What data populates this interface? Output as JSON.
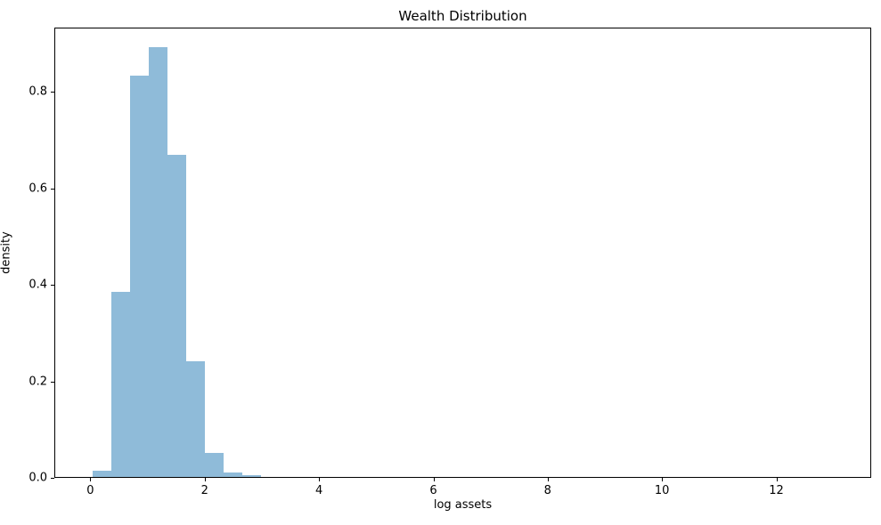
{
  "chart_data": {
    "type": "bar",
    "subtype": "histogram",
    "title": "Wealth Distribution",
    "xlabel": "log assets",
    "ylabel": "density",
    "bar_color": "#8fbbd9",
    "grid": false,
    "legend": "none",
    "xlim": [
      -0.63,
      13.66
    ],
    "ylim": [
      0,
      0.933
    ],
    "xticks": [
      0,
      2,
      4,
      6,
      8,
      10,
      12
    ],
    "xtick_labels": [
      "0",
      "2",
      "4",
      "6",
      "8",
      "10",
      "12"
    ],
    "yticks": [
      0.0,
      0.2,
      0.4,
      0.6,
      0.8
    ],
    "ytick_labels": [
      "0.0",
      "0.2",
      "0.4",
      "0.6",
      "0.8"
    ],
    "bins": [
      {
        "start": 0.03,
        "end": 0.357,
        "density": 0.013
      },
      {
        "start": 0.357,
        "end": 0.684,
        "density": 0.383
      },
      {
        "start": 0.684,
        "end": 1.011,
        "density": 0.831
      },
      {
        "start": 1.011,
        "end": 1.338,
        "density": 0.89
      },
      {
        "start": 1.338,
        "end": 1.665,
        "density": 0.667
      },
      {
        "start": 1.665,
        "end": 1.992,
        "density": 0.239
      },
      {
        "start": 1.992,
        "end": 2.319,
        "density": 0.05
      },
      {
        "start": 2.319,
        "end": 2.646,
        "density": 0.01
      },
      {
        "start": 2.646,
        "end": 2.973,
        "density": 0.004
      }
    ]
  }
}
